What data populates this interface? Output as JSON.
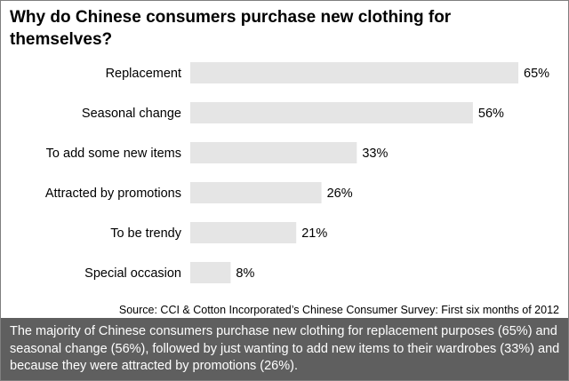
{
  "title": "Why do Chinese consumers purchase new clothing for themselves?",
  "source": "Source: CCI & Cotton Incorporated’s Chinese Consumer Survey: First six months of 2012",
  "caption": "The majority of Chinese consumers purchase new clothing for replacement purposes (65%) and seasonal change (56%), followed by just wanting to add new items to their wardrobes (33%) and because they were attracted by promotions (26%).",
  "colors": {
    "bar": "#e5e5e5",
    "caption_bg": "#5f5f5f",
    "caption_text": "#ffffff"
  },
  "chart_data": {
    "type": "bar",
    "orientation": "horizontal",
    "categories": [
      "Replacement",
      "Seasonal change",
      "To add some new items",
      "Attracted by promotions",
      "To be trendy",
      "Special occasion"
    ],
    "values": [
      65,
      56,
      33,
      26,
      21,
      8
    ],
    "value_labels": [
      "65%",
      "56%",
      "33%",
      "26%",
      "21%",
      "8%"
    ],
    "unit": "%",
    "xlim": [
      0,
      65
    ],
    "grid": false,
    "legend": "none"
  }
}
